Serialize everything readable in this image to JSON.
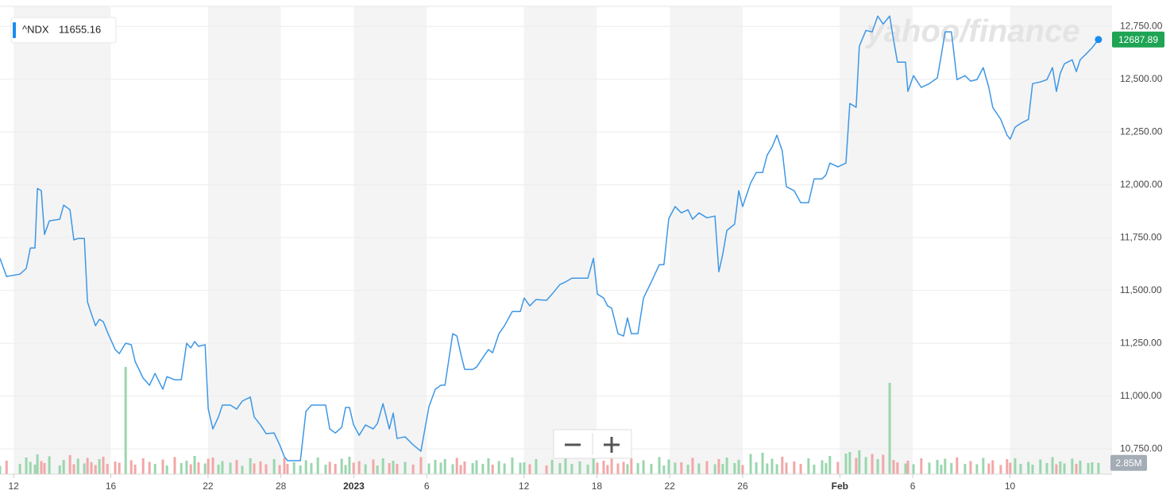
{
  "chart_data": {
    "type": "line",
    "watermark": "yahoo/finance",
    "hover_value": 11655.16,
    "current_price": 12687.89,
    "current_volume": {
      "value": 2.85,
      "label": "2.85M"
    },
    "xlim": [
      -0.56,
      45.2
    ],
    "xticks": [
      {
        "value": 0,
        "label": "12"
      },
      {
        "value": 4,
        "label": "16"
      },
      {
        "value": 8,
        "label": "22"
      },
      {
        "value": 11,
        "label": "28"
      },
      {
        "value": 14,
        "label": "2023"
      },
      {
        "value": 17,
        "label": "6"
      },
      {
        "value": 21,
        "label": "12"
      },
      {
        "value": 24,
        "label": "18"
      },
      {
        "value": 27,
        "label": "22"
      },
      {
        "value": 30,
        "label": "26"
      },
      {
        "value": 34,
        "label": "Feb"
      },
      {
        "value": 37,
        "label": "6"
      },
      {
        "value": 41,
        "label": "10"
      }
    ],
    "ylim": [
      10630,
      12845
    ],
    "yticks": [
      {
        "value": 10750,
        "label": "10,750.00"
      },
      {
        "value": 11000,
        "label": "11,000.00"
      },
      {
        "value": 11250,
        "label": "11,250.00"
      },
      {
        "value": 11500,
        "label": "11,500.00"
      },
      {
        "value": 11750,
        "label": "11,750.00"
      },
      {
        "value": 12000,
        "label": "12,000.00"
      },
      {
        "value": 12250,
        "label": "12,250.00"
      },
      {
        "value": 12500,
        "label": "12,500.00"
      },
      {
        "value": 12750,
        "label": "12,750.00"
      }
    ],
    "grid": true,
    "week_shading": true,
    "price_tag_color": "#1ea453",
    "vlim": [
      0,
      30
    ],
    "volume_up_color": "#9ad6ae",
    "volume_down_color": "#f2a7a7",
    "x": [
      -0.56,
      -0.29,
      0.26,
      0.52,
      0.69,
      0.88,
      0.98,
      1.14,
      1.27,
      1.47,
      1.9,
      2.06,
      2.32,
      2.48,
      2.65,
      2.91,
      3.04,
      3.2,
      3.37,
      3.53,
      3.69,
      3.86,
      4.18,
      4.35,
      4.61,
      4.84,
      5.0,
      5.33,
      5.59,
      5.82,
      6.14,
      6.31,
      6.63,
      6.9,
      7.12,
      7.29,
      7.45,
      7.61,
      7.88,
      8.01,
      8.2,
      8.43,
      8.59,
      8.92,
      9.18,
      9.41,
      9.74,
      9.9,
      10.16,
      10.39,
      10.72,
      10.95,
      11.14,
      11.27,
      11.54,
      11.8,
      12.03,
      12.25,
      12.52,
      12.84,
      13.01,
      13.24,
      13.5,
      13.66,
      13.82,
      13.99,
      14.22,
      14.48,
      14.8,
      14.97,
      15.2,
      15.46,
      15.62,
      15.78,
      16.11,
      16.44,
      16.76,
      17.09,
      17.35,
      17.58,
      17.75,
      18.07,
      18.24,
      18.4,
      18.56,
      18.89,
      19.05,
      19.31,
      19.54,
      19.71,
      19.97,
      20.2,
      20.52,
      20.85,
      21.01,
      21.24,
      21.5,
      21.93,
      22.16,
      22.48,
      22.71,
      22.97,
      23.3,
      23.63,
      23.86,
      24.02,
      24.28,
      24.44,
      24.61,
      24.87,
      25.1,
      25.26,
      25.42,
      25.69,
      25.92,
      26.24,
      26.57,
      26.76,
      26.96,
      27.22,
      27.48,
      27.75,
      27.94,
      28.2,
      28.53,
      28.86,
      29.02,
      29.18,
      29.35,
      29.67,
      29.84,
      30.0,
      30.33,
      30.56,
      30.82,
      31.01,
      31.21,
      31.41,
      31.63,
      31.8,
      32.12,
      32.39,
      32.71,
      32.94,
      33.27,
      33.43,
      33.59,
      33.92,
      34.25,
      34.41,
      34.67,
      34.8,
      35.07,
      35.33,
      35.56,
      35.78,
      36.05,
      36.21,
      36.37,
      36.7,
      36.8,
      37.03,
      37.35,
      37.68,
      38.01,
      38.17,
      38.33,
      38.59,
      38.82,
      39.15,
      39.38,
      39.64,
      39.9,
      40.13,
      40.29,
      40.62,
      40.88,
      41.01,
      41.21,
      41.44,
      41.76,
      41.93,
      42.25,
      42.52,
      42.75,
      42.91,
      43.07,
      43.24,
      43.56,
      43.73,
      43.89,
      44.22,
      44.38,
      44.64
    ],
    "series": [
      {
        "name": "^NDX",
        "color": "#3d97e6",
        "values": [
          11652,
          11566,
          11577,
          11604,
          11701,
          11701,
          11983,
          11972,
          11765,
          11829,
          11837,
          11904,
          11882,
          11739,
          11746,
          11746,
          11446,
          11389,
          11333,
          11363,
          11352,
          11303,
          11220,
          11201,
          11250,
          11243,
          11164,
          11085,
          11051,
          11107,
          11032,
          11092,
          11077,
          11077,
          11250,
          11228,
          11258,
          11235,
          11243,
          10938,
          10844,
          10901,
          10957,
          10957,
          10938,
          10976,
          10995,
          10901,
          10863,
          10822,
          10825,
          10769,
          10713,
          10694,
          10694,
          10694,
          10927,
          10957,
          10957,
          10957,
          10844,
          10825,
          10852,
          10946,
          10946,
          10863,
          10814,
          10863,
          10844,
          10870,
          10964,
          10844,
          10919,
          10799,
          10807,
          10769,
          10739,
          10949,
          11032,
          11051,
          11051,
          11295,
          11284,
          11201,
          11126,
          11126,
          11137,
          11182,
          11220,
          11205,
          11295,
          11333,
          11400,
          11400,
          11464,
          11427,
          11457,
          11453,
          11483,
          11528,
          11540,
          11558,
          11558,
          11558,
          11652,
          11483,
          11464,
          11427,
          11416,
          11295,
          11284,
          11370,
          11295,
          11295,
          11464,
          11540,
          11622,
          11622,
          11840,
          11897,
          11867,
          11882,
          11837,
          11867,
          11844,
          11852,
          11588,
          11671,
          11784,
          11814,
          11972,
          11897,
          12009,
          12058,
          12058,
          12141,
          12179,
          12235,
          12160,
          11991,
          11972,
          11915,
          11915,
          12028,
          12028,
          12047,
          12103,
          12085,
          12103,
          12385,
          12367,
          12656,
          12731,
          12724,
          12799,
          12761,
          12799,
          12686,
          12581,
          12581,
          12442,
          12517,
          12461,
          12479,
          12506,
          12611,
          12724,
          12724,
          12498,
          12517,
          12491,
          12498,
          12555,
          12461,
          12367,
          12310,
          12235,
          12216,
          12273,
          12291,
          12310,
          12479,
          12487,
          12498,
          12555,
          12442,
          12528,
          12573,
          12592,
          12536,
          12592,
          12630,
          12649,
          12687.89
        ]
      }
    ],
    "volume": [
      2.1,
      3.4,
      2.6,
      4.2,
      3.1,
      2.4,
      5.0,
      3.3,
      2.8,
      4.5,
      2.2,
      3.6,
      4.8,
      2.5,
      3.9,
      2.7,
      4.1,
      3.0,
      2.3,
      3.8,
      4.4,
      2.6,
      3.2,
      2.9,
      27,
      3.5,
      2.4,
      4.0,
      3.1,
      2.6,
      3.7,
      2.2,
      4.3,
      2.8,
      3.4,
      2.5,
      4.6,
      3.0,
      2.7,
      3.9,
      4.2,
      2.4,
      3.3,
      2.9,
      3.6,
      2.1,
      4.0,
      2.7,
      3.2,
      2.5,
      3.8,
      2.3,
      4.1,
      2.6,
      3.0,
      2.2,
      3.5,
      2.8,
      4.2,
      2.4,
      3.1,
      2.6,
      3.9,
      2.3,
      4.4,
      2.9,
      3.3,
      2.5,
      3.7,
      2.2,
      4.0,
      2.8,
      3.4,
      2.6,
      3.1,
      2.4,
      4.3,
      2.7,
      3.6,
      2.9,
      3.8,
      2.5,
      4.1,
      2.3,
      3.2,
      2.8,
      3.5,
      2.6,
      4.0,
      2.4,
      3.3,
      2.7,
      4.2,
      2.9,
      3.0,
      2.5,
      3.8,
      2.2,
      3.6,
      2.8,
      4.1,
      2.6,
      3.2,
      2.4,
      4.5,
      2.9,
      3.4,
      2.3,
      3.9,
      2.7,
      3.1,
      2.5,
      4.0,
      2.8,
      3.5,
      2.6,
      4.3,
      2.2,
      3.7,
      2.9,
      3.0,
      2.4,
      4.1,
      2.7,
      3.3,
      2.5,
      3.8,
      2.6,
      4.2,
      2.8,
      3.6,
      2.3,
      5.1,
      3.0,
      5.4,
      2.7,
      3.9,
      2.5,
      4.4,
      2.9,
      3.2,
      2.6,
      4.0,
      2.4,
      3.5,
      2.8,
      4.6,
      3.1,
      5.2,
      5.6,
      4.1,
      6.0,
      4.3,
      5.1,
      3.8,
      4.9,
      23,
      3.6,
      3.0,
      2.7,
      3.4,
      2.5,
      4.0,
      2.9,
      3.6,
      2.4,
      3.9,
      2.8,
      4.2,
      2.6,
      3.3,
      2.5,
      4.1,
      2.7,
      3.5,
      2.3,
      3.8,
      2.9,
      4.0,
      2.6,
      3.1,
      2.4,
      3.7,
      2.8,
      4.3,
      2.5,
      3.2,
      2.7,
      3.9,
      2.6,
      3.4,
      2.8,
      3.0,
      2.85
    ]
  }
}
